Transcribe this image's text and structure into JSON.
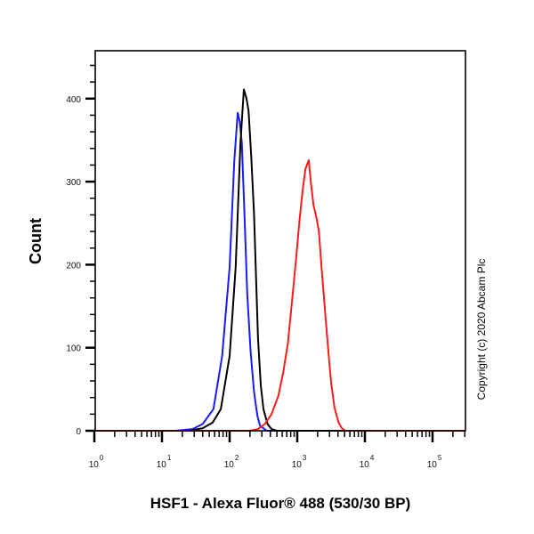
{
  "chart_data": {
    "type": "line",
    "title": "",
    "xlabel": "HSF1 - Alexa Fluor® 488 (530/30 BP)",
    "ylabel": "Count",
    "xscale": "log",
    "xlim_log10": [
      0,
      5.5
    ],
    "ylim": [
      0,
      458
    ],
    "x_ticks": [
      {
        "base": "10",
        "exp": "0",
        "log": 0
      },
      {
        "base": "10",
        "exp": "1",
        "log": 1
      },
      {
        "base": "10",
        "exp": "2",
        "log": 2
      },
      {
        "base": "10",
        "exp": "3",
        "log": 3
      },
      {
        "base": "10",
        "exp": "4",
        "log": 4
      },
      {
        "base": "10",
        "exp": "5",
        "log": 5
      }
    ],
    "y_ticks": [
      0,
      100,
      200,
      300,
      400
    ],
    "grid": false,
    "legend": null,
    "annotation": "Copyright (c) 2020 Abcam Plc",
    "series": [
      {
        "name": "blue",
        "color": "#1a1aff",
        "peak": {
          "x": 131,
          "count": 383
        },
        "points": [
          [
            0,
            0
          ],
          [
            1.2,
            0
          ],
          [
            1.45,
            2
          ],
          [
            1.6,
            8
          ],
          [
            1.76,
            26
          ],
          [
            1.89,
            90
          ],
          [
            2.0,
            197
          ],
          [
            2.07,
            326
          ],
          [
            2.12,
            383
          ],
          [
            2.15,
            372
          ],
          [
            2.18,
            347
          ],
          [
            2.22,
            260
          ],
          [
            2.26,
            165
          ],
          [
            2.31,
            95
          ],
          [
            2.36,
            47
          ],
          [
            2.41,
            18
          ],
          [
            2.45,
            6
          ],
          [
            2.55,
            0
          ],
          [
            5.5,
            0
          ]
        ]
      },
      {
        "name": "black",
        "color": "#000000",
        "peak": {
          "x": 162,
          "count": 411
        },
        "points": [
          [
            0,
            0
          ],
          [
            1.4,
            0
          ],
          [
            1.6,
            3
          ],
          [
            1.75,
            10
          ],
          [
            1.87,
            26
          ],
          [
            2.0,
            90
          ],
          [
            2.09,
            197
          ],
          [
            2.16,
            347
          ],
          [
            2.21,
            411
          ],
          [
            2.25,
            400
          ],
          [
            2.28,
            385
          ],
          [
            2.32,
            330
          ],
          [
            2.36,
            262
          ],
          [
            2.42,
            111
          ],
          [
            2.46,
            55
          ],
          [
            2.5,
            26
          ],
          [
            2.56,
            8
          ],
          [
            2.62,
            2
          ],
          [
            2.7,
            0
          ],
          [
            5.5,
            0
          ]
        ]
      },
      {
        "name": "red",
        "color": "#ff1a1a",
        "peak": {
          "x": 1480,
          "count": 326
        },
        "points": [
          [
            0,
            0
          ],
          [
            2.3,
            0
          ],
          [
            2.42,
            2
          ],
          [
            2.52,
            8
          ],
          [
            2.62,
            20
          ],
          [
            2.72,
            42
          ],
          [
            2.79,
            69
          ],
          [
            2.86,
            105
          ],
          [
            2.92,
            154
          ],
          [
            2.98,
            205
          ],
          [
            3.03,
            251
          ],
          [
            3.08,
            290
          ],
          [
            3.12,
            315
          ],
          [
            3.17,
            326
          ],
          [
            3.2,
            300
          ],
          [
            3.24,
            272
          ],
          [
            3.28,
            258
          ],
          [
            3.32,
            240
          ],
          [
            3.36,
            195
          ],
          [
            3.41,
            144
          ],
          [
            3.46,
            95
          ],
          [
            3.5,
            58
          ],
          [
            3.55,
            28
          ],
          [
            3.61,
            10
          ],
          [
            3.66,
            3
          ],
          [
            3.71,
            0
          ],
          [
            5.5,
            0
          ]
        ]
      }
    ]
  }
}
